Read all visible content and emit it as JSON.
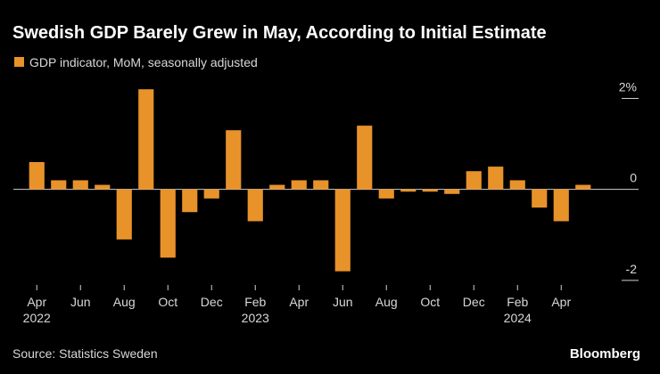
{
  "chart_data": {
    "type": "bar",
    "title": "Swedish GDP Barely Grew in May, According to Initial Estimate",
    "source": "Source: Statistics Sweden",
    "brand": "Bloomberg",
    "categories": [
      "Apr",
      null,
      "Jun",
      null,
      "Aug",
      null,
      "Oct",
      null,
      "Dec",
      null,
      "Feb",
      null,
      "Apr",
      null,
      "Jun",
      null,
      "Aug",
      null,
      "Oct",
      null,
      "Dec",
      null,
      "Feb",
      null,
      "Apr",
      null
    ],
    "year_labels": [
      "2022",
      null,
      null,
      null,
      null,
      null,
      null,
      null,
      null,
      null,
      "2023",
      null,
      null,
      null,
      null,
      null,
      null,
      null,
      null,
      null,
      null,
      null,
      "2024",
      null,
      null,
      null
    ],
    "series": [
      {
        "name": "GDP indicator, MoM, seasonally adjusted",
        "color": "#e8922a",
        "values": [
          0.6,
          0.2,
          0.2,
          0.1,
          -1.1,
          2.2,
          -1.5,
          -0.5,
          -0.2,
          1.3,
          -0.7,
          0.1,
          0.2,
          0.2,
          -1.8,
          1.4,
          -0.2,
          -0.05,
          -0.05,
          -0.1,
          0.4,
          0.5,
          0.2,
          -0.4,
          -0.7,
          0.1
        ]
      }
    ],
    "ylim": [
      -2.1,
      2.4
    ],
    "yticks": [
      {
        "value": 2,
        "label": "2%"
      },
      0,
      -2
    ]
  }
}
